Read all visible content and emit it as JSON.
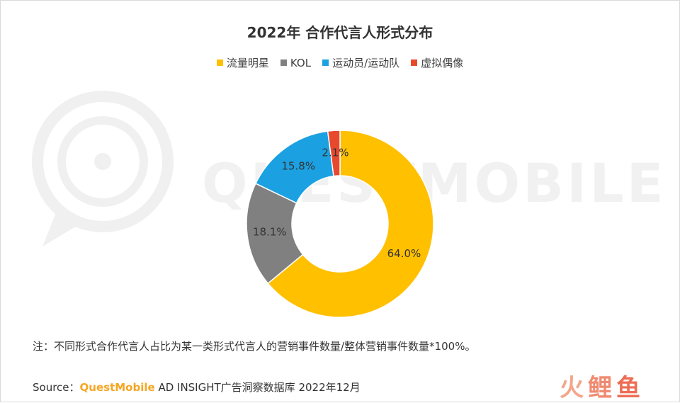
{
  "chart_data": {
    "type": "pie",
    "title": "2022年 合作代言人形式分布",
    "series": [
      {
        "name": "流量明星",
        "value": 64.0,
        "label": "64.0%",
        "color": "#FFC000"
      },
      {
        "name": "KOL",
        "value": 18.1,
        "label": "18.1%",
        "color": "#808080"
      },
      {
        "name": "运动员/运动队",
        "value": 15.8,
        "label": "15.8%",
        "color": "#1BA1E2"
      },
      {
        "name": "虚拟偶像",
        "value": 2.1,
        "label": "2.1%",
        "color": "#E8492D"
      }
    ],
    "legend_position": "top",
    "donut": true
  },
  "note": "注：不同形式合作代言人占比为某一类形式代言人的营销事件数量/整体营销事件数量*100%。",
  "source": {
    "label": "Source：",
    "brand": "QuestMobile",
    "text": " AD INSIGHT广告洞察数据库 2022年12月"
  },
  "watermark": "QUESTMOBILE",
  "logo": {
    "part1": "火",
    "part2": "鲤",
    "part3": "鱼"
  }
}
